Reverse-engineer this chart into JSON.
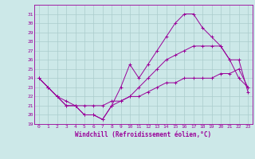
{
  "xlabel": "Windchill (Refroidissement éolien,°C)",
  "bg_color": "#cce8e8",
  "grid_color": "#aacccc",
  "line_color": "#990099",
  "line1": {
    "x": [
      0,
      1,
      2,
      3,
      4,
      5,
      6,
      7,
      8,
      9,
      10,
      11,
      12,
      13,
      14,
      15,
      16,
      17,
      18,
      19,
      20,
      21,
      22,
      23
    ],
    "y": [
      24,
      23,
      22,
      21,
      21,
      20,
      20,
      19.5,
      21,
      23,
      25.5,
      24,
      25.5,
      27,
      28.5,
      30,
      31,
      31,
      29.5,
      28.5,
      27.5,
      26,
      24,
      23
    ]
  },
  "line2": {
    "x": [
      0,
      1,
      2,
      3,
      4,
      5,
      6,
      7,
      8,
      9,
      10,
      11,
      12,
      13,
      14,
      15,
      16,
      17,
      18,
      19,
      20,
      21,
      22,
      23
    ],
    "y": [
      24,
      23,
      22,
      21.5,
      21,
      21,
      21,
      21,
      21.5,
      21.5,
      22,
      22,
      22.5,
      23,
      23.5,
      23.5,
      24,
      24,
      24,
      24,
      24.5,
      24.5,
      25,
      23
    ]
  },
  "line3": {
    "x": [
      0,
      1,
      2,
      3,
      4,
      5,
      6,
      7,
      8,
      9,
      10,
      11,
      12,
      13,
      14,
      15,
      16,
      17,
      18,
      19,
      20,
      21,
      22,
      23
    ],
    "y": [
      24,
      23,
      22,
      21,
      21,
      20,
      20,
      19.5,
      21,
      21.5,
      22,
      23,
      24,
      25,
      26,
      26.5,
      27,
      27.5,
      27.5,
      27.5,
      27.5,
      26,
      26,
      22.5
    ]
  },
  "ylim": [
    19,
    32
  ],
  "xlim": [
    -0.5,
    23.5
  ],
  "yticks": [
    19,
    20,
    21,
    22,
    23,
    24,
    25,
    26,
    27,
    28,
    29,
    30,
    31
  ],
  "xticks": [
    0,
    1,
    2,
    3,
    4,
    5,
    6,
    7,
    8,
    9,
    10,
    11,
    12,
    13,
    14,
    15,
    16,
    17,
    18,
    19,
    20,
    21,
    22,
    23
  ],
  "marker": "+"
}
